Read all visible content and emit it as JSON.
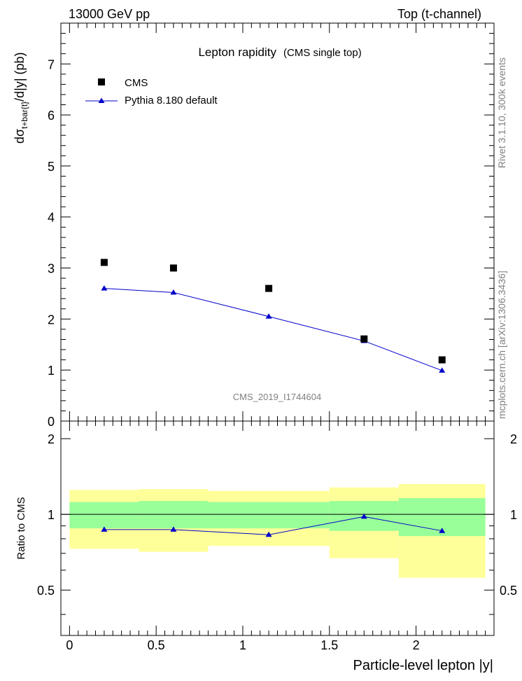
{
  "header": {
    "left": "13000 GeV pp",
    "right": "Top (t-channel)"
  },
  "side_labels": {
    "rivet": "Rivet 3.1.10,  300k events",
    "mcplots": "mcplots.cern.ch [arXiv:1306.3436]"
  },
  "colors": {
    "mc": "#0000cc",
    "band_inner": "#99ff99",
    "band_outer": "#ffff99",
    "data": "#000000",
    "watermark": "#808080"
  },
  "chart_data": [
    {
      "type": "scatter",
      "title": "Lepton rapidity",
      "subtitle": "(CMS single top)",
      "watermark": "CMS_2019_I1744604",
      "ylabel": {
        "main": "dσ",
        "sub": "t+bar{t}",
        "rest": "/d|y|  (pb)"
      },
      "xlim": [
        -0.05,
        2.45
      ],
      "ylim": [
        0,
        7.8
      ],
      "yticks": [
        0,
        1,
        2,
        3,
        4,
        5,
        6,
        7
      ],
      "yticklabels": [
        "0",
        "1",
        "2",
        "3",
        "4",
        "5",
        "6",
        "7"
      ],
      "legend": {
        "position": "top-left",
        "entries": [
          {
            "label": "CMS",
            "marker": "square"
          },
          {
            "label": "Pythia 8.180 default",
            "marker": "triangle-line"
          }
        ]
      },
      "bins": [
        {
          "low": 0.0,
          "high": 0.4
        },
        {
          "low": 0.4,
          "high": 0.8
        },
        {
          "low": 0.8,
          "high": 1.5
        },
        {
          "low": 1.5,
          "high": 1.9
        },
        {
          "low": 1.9,
          "high": 2.4
        }
      ],
      "series": [
        {
          "name": "CMS",
          "x": [
            0.2,
            0.6,
            1.15,
            1.7,
            2.15
          ],
          "values": [
            3.11,
            3.0,
            2.6,
            1.61,
            1.2
          ]
        },
        {
          "name": "Pythia 8.180 default",
          "x": [
            0.2,
            0.6,
            1.15,
            1.7,
            2.15
          ],
          "values": [
            2.6,
            2.52,
            2.05,
            1.57,
            0.99
          ]
        }
      ]
    },
    {
      "type": "line",
      "ylabel": "Ratio to CMS",
      "xlabel": "Particle-level lepton |y|",
      "xlim": [
        -0.05,
        2.45
      ],
      "xticks": [
        0,
        0.5,
        1,
        1.5,
        2
      ],
      "xticklabels": [
        "0",
        "0.5",
        "1",
        "1.5",
        "2"
      ],
      "ylim": [
        0.33,
        2.35
      ],
      "yticks": [
        0.5,
        1,
        2
      ],
      "yticklabels": [
        "0.5",
        "1",
        "2"
      ],
      "reference_line": 1.0,
      "bands": {
        "inner_low": [
          0.88,
          0.88,
          0.88,
          0.86,
          0.82
        ],
        "inner_high": [
          1.12,
          1.13,
          1.12,
          1.13,
          1.16
        ],
        "outer_low": [
          0.73,
          0.71,
          0.75,
          0.67,
          0.56
        ],
        "outer_high": [
          1.25,
          1.26,
          1.24,
          1.28,
          1.32
        ]
      },
      "series": [
        {
          "name": "Pythia 8.180 default",
          "x": [
            0.2,
            0.6,
            1.15,
            1.7,
            2.15
          ],
          "values": [
            0.87,
            0.87,
            0.83,
            0.98,
            0.86
          ]
        }
      ]
    }
  ]
}
